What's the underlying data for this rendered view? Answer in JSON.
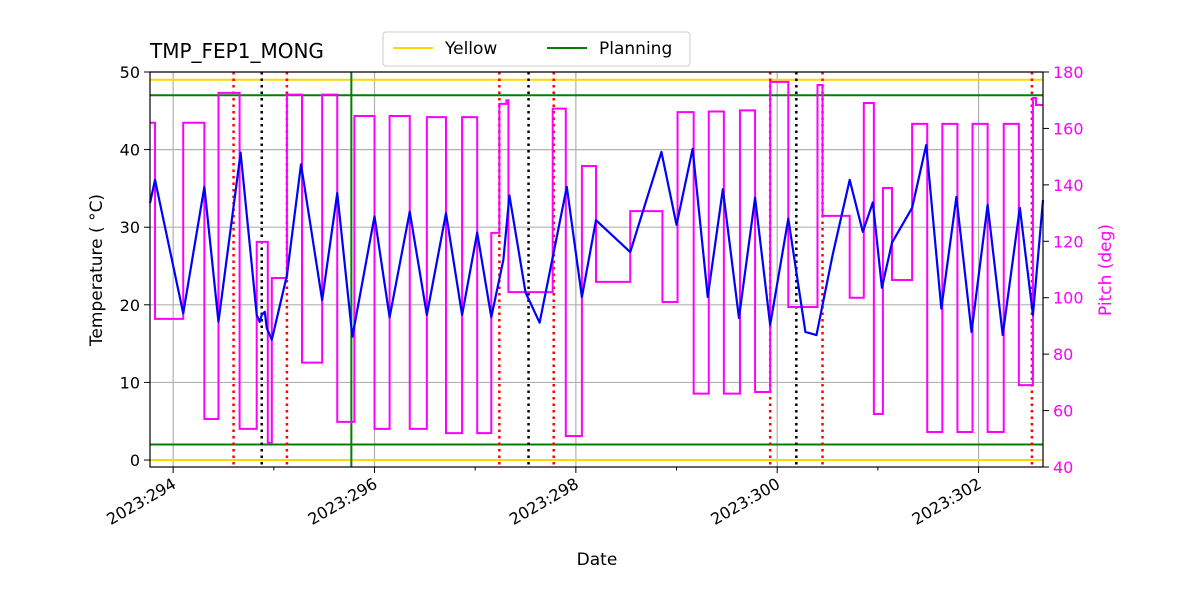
{
  "chart_data": {
    "type": "line",
    "title": "TMP_FEP1_MONG",
    "xlabel": "Date",
    "ylabel": "Temperature ($^\\circ$C)",
    "ylabel_display": "Temperature ( °C)",
    "y2label": "Pitch (deg)",
    "xlim": [
      293.77,
      302.64
    ],
    "ylim": [
      -0.9,
      50
    ],
    "y2lim": [
      40,
      180
    ],
    "xticks": [
      294,
      296,
      298,
      300,
      302
    ],
    "xtick_labels": [
      "2023:294",
      "2023:296",
      "2023:298",
      "2023:300",
      "2023:302"
    ],
    "xminor_ticks": [
      295,
      297,
      299,
      301
    ],
    "yticks": [
      0,
      10,
      20,
      30,
      40,
      50
    ],
    "y2ticks": [
      40,
      60,
      80,
      100,
      120,
      140,
      160,
      180
    ],
    "grid": true,
    "legend": {
      "placement": "top-center",
      "entries": [
        {
          "name": "Yellow",
          "color": "#ffd700"
        },
        {
          "name": "Planning",
          "color": "#008000"
        }
      ]
    },
    "colors": {
      "temperature": "#0000ff",
      "pitch": "#ff00ff",
      "yellow": "#ffd700",
      "planning": "#008000",
      "red_events": "#ff0000",
      "black_events": "#000000",
      "grid": "#b0b0b0"
    },
    "yellow_limits": [
      0,
      49
    ],
    "planning_limits": [
      2,
      47
    ],
    "planning_vline": 295.77,
    "red_dotted_vlines": [
      294.6,
      295.13,
      297.24,
      297.78,
      299.93,
      300.45,
      302.53
    ],
    "black_dotted_vlines": [
      294.88,
      297.53,
      300.19
    ],
    "temperature": [
      [
        293.77,
        33.1
      ],
      [
        293.82,
        36.1
      ],
      [
        294.1,
        18.9
      ],
      [
        294.31,
        35.2
      ],
      [
        294.45,
        17.8
      ],
      [
        294.67,
        39.6
      ],
      [
        294.83,
        18.7
      ],
      [
        294.86,
        17.8
      ],
      [
        294.88,
        18.7
      ],
      [
        294.91,
        19.1
      ],
      [
        294.93,
        17.0
      ],
      [
        294.98,
        15.5
      ],
      [
        295.13,
        23.8
      ],
      [
        295.27,
        38.1
      ],
      [
        295.48,
        20.6
      ],
      [
        295.63,
        34.4
      ],
      [
        295.78,
        15.9
      ],
      [
        296.0,
        31.4
      ],
      [
        296.15,
        18.4
      ],
      [
        296.35,
        32.0
      ],
      [
        296.52,
        18.7
      ],
      [
        296.71,
        31.8
      ],
      [
        296.87,
        18.7
      ],
      [
        297.02,
        29.3
      ],
      [
        297.16,
        18.4
      ],
      [
        297.28,
        25.8
      ],
      [
        297.34,
        34.1
      ],
      [
        297.5,
        21.6
      ],
      [
        297.64,
        17.7
      ],
      [
        297.91,
        35.2
      ],
      [
        298.06,
        21.0
      ],
      [
        298.2,
        30.9
      ],
      [
        298.54,
        26.8
      ],
      [
        298.85,
        39.7
      ],
      [
        299.0,
        30.3
      ],
      [
        299.16,
        40.1
      ],
      [
        299.31,
        21.0
      ],
      [
        299.46,
        34.9
      ],
      [
        299.62,
        18.3
      ],
      [
        299.78,
        33.8
      ],
      [
        299.93,
        17.4
      ],
      [
        300.11,
        31.1
      ],
      [
        300.28,
        16.5
      ],
      [
        300.39,
        16.1
      ],
      [
        300.55,
        26.4
      ],
      [
        300.72,
        36.1
      ],
      [
        300.85,
        29.4
      ],
      [
        300.95,
        33.2
      ],
      [
        301.04,
        22.2
      ],
      [
        301.14,
        28.0
      ],
      [
        301.34,
        32.5
      ],
      [
        301.48,
        40.6
      ],
      [
        301.63,
        19.5
      ],
      [
        301.78,
        33.9
      ],
      [
        301.93,
        16.5
      ],
      [
        302.09,
        32.9
      ],
      [
        302.24,
        16.1
      ],
      [
        302.41,
        32.5
      ],
      [
        302.54,
        18.7
      ],
      [
        302.64,
        33.5
      ]
    ],
    "pitch_steps": [
      [
        293.77,
        162
      ],
      [
        293.82,
        92.5
      ],
      [
        294.1,
        162
      ],
      [
        294.31,
        57
      ],
      [
        294.45,
        172.6
      ],
      [
        294.66,
        53.5
      ],
      [
        294.83,
        119.8
      ],
      [
        294.94,
        48.5
      ],
      [
        294.98,
        107
      ],
      [
        295.13,
        172
      ],
      [
        295.28,
        77
      ],
      [
        295.48,
        172
      ],
      [
        295.63,
        56
      ],
      [
        295.8,
        164.4
      ],
      [
        296.0,
        53.5
      ],
      [
        296.15,
        164.4
      ],
      [
        296.35,
        53.5
      ],
      [
        296.52,
        164
      ],
      [
        296.71,
        52
      ],
      [
        296.87,
        164
      ],
      [
        297.02,
        52
      ],
      [
        297.16,
        123
      ],
      [
        297.24,
        168.7
      ],
      [
        297.31,
        170
      ],
      [
        297.33,
        102
      ],
      [
        297.77,
        167
      ],
      [
        297.9,
        51
      ],
      [
        298.06,
        146.7
      ],
      [
        298.2,
        105.6
      ],
      [
        298.54,
        130.7
      ],
      [
        298.86,
        98.5
      ],
      [
        299.01,
        165.8
      ],
      [
        299.17,
        66
      ],
      [
        299.32,
        166
      ],
      [
        299.47,
        66
      ],
      [
        299.63,
        166.4
      ],
      [
        299.78,
        66.6
      ],
      [
        299.93,
        176.5
      ],
      [
        300.11,
        96.7
      ],
      [
        300.4,
        175.4
      ],
      [
        300.45,
        129
      ],
      [
        300.72,
        100
      ],
      [
        300.86,
        169
      ],
      [
        300.96,
        58.8
      ],
      [
        301.05,
        138.9
      ],
      [
        301.14,
        106.3
      ],
      [
        301.34,
        161.6
      ],
      [
        301.49,
        52.4
      ],
      [
        301.64,
        161.6
      ],
      [
        301.79,
        52.4
      ],
      [
        301.94,
        161.6
      ],
      [
        302.09,
        52.4
      ],
      [
        302.25,
        161.6
      ],
      [
        302.4,
        69
      ],
      [
        302.54,
        170.8
      ],
      [
        302.57,
        168.3
      ],
      [
        302.64,
        168.3
      ]
    ]
  }
}
